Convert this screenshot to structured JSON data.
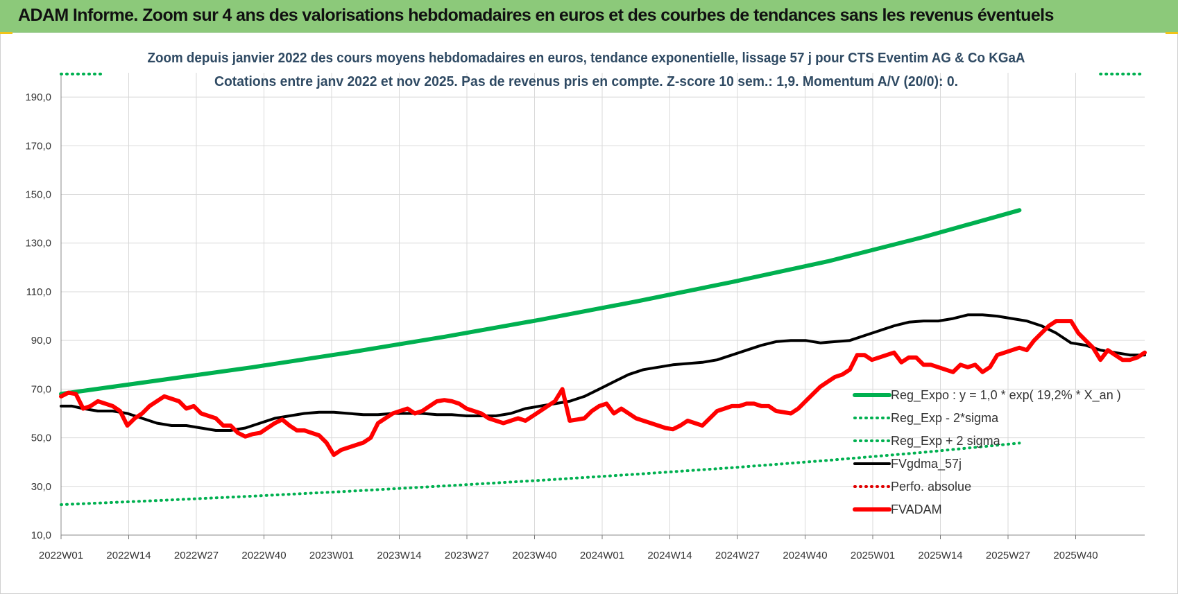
{
  "banner": {
    "title": "ADAM Informe. Zoom sur 4 ans des valorisations hebdomadaires en euros et des courbes de tendances sans les revenus éventuels"
  },
  "colors": {
    "banner_bg": "#8cc97a",
    "reg_expo": "#00b050",
    "fvgdma": "#000000",
    "perfo": "#e00000",
    "fvadam": "#ff0000",
    "grid": "#d9d9d9"
  },
  "chart_data": {
    "type": "line",
    "title": "Zoom depuis janvier 2022 des cours moyens hebdomadaires en euros, tendance exponentielle, lissage 57 j pour CTS Eventim AG & Co KGaA",
    "subtitle": "Cotations entre janv 2022 et nov 2025. Pas de revenus pris en compte. Z-score 10 sem.: 1,9. Momentum A/V (20/0): 0.",
    "xlabel": "",
    "ylabel": "",
    "ylim": [
      10,
      200
    ],
    "y_ticks": [
      "10,0",
      "30,0",
      "50,0",
      "70,0",
      "90,0",
      "110,0",
      "130,0",
      "150,0",
      "170,0",
      "190,0"
    ],
    "x_ticks": [
      "2022W01",
      "2022W14",
      "2022W27",
      "2022W40",
      "2023W01",
      "2023W14",
      "2023W27",
      "2023W40",
      "2024W01",
      "2024W14",
      "2024W27",
      "2024W40",
      "2025W01",
      "2025W14",
      "2025W27",
      "2025W40"
    ],
    "x_week_index_range": [
      0,
      204
    ],
    "grid": true,
    "legend_position": "bottom-right",
    "series": [
      {
        "name": "Reg_Expo : y = 1,0 * exp( 19,2% *  X_an )",
        "style": "solid-thick",
        "color": "#00b050",
        "points": [
          [
            0,
            68
          ],
          [
            26,
            73.5
          ],
          [
            52,
            79
          ],
          [
            78,
            85
          ],
          [
            104,
            91.5
          ],
          [
            130,
            98.5
          ],
          [
            156,
            106
          ],
          [
            182,
            114
          ],
          [
            208,
            122.5
          ],
          [
            234,
            132.5
          ],
          [
            260,
            143.5
          ]
        ]
      },
      {
        "name": "Reg_Exp - 2*sigma",
        "style": "dotted",
        "color": "#00b050",
        "points": [
          [
            0,
            22.5
          ],
          [
            26,
            24.2
          ],
          [
            52,
            26
          ],
          [
            78,
            28
          ],
          [
            104,
            30.2
          ],
          [
            130,
            32.5
          ],
          [
            156,
            35
          ],
          [
            182,
            37.7
          ],
          [
            208,
            40.7
          ],
          [
            234,
            44
          ],
          [
            260,
            47.8
          ]
        ]
      },
      {
        "name": "Reg_Exp + 2 sigma",
        "style": "dotted",
        "color": "#00b050",
        "points": [
          [
            0,
            199.5
          ],
          [
            16,
            199.5
          ]
        ],
        "points_right": [
          [
            183,
            199.5
          ],
          [
            204,
            199.5
          ]
        ]
      },
      {
        "name": "FVgdma_57j",
        "style": "solid-medium",
        "color": "#000000",
        "points": [
          [
            0,
            63
          ],
          [
            3,
            63
          ],
          [
            6,
            62
          ],
          [
            10,
            61
          ],
          [
            14,
            61
          ],
          [
            18,
            60
          ],
          [
            22,
            58
          ],
          [
            26,
            56
          ],
          [
            30,
            55
          ],
          [
            34,
            55
          ],
          [
            38,
            54
          ],
          [
            42,
            53
          ],
          [
            46,
            53
          ],
          [
            50,
            54
          ],
          [
            54,
            56
          ],
          [
            58,
            58
          ],
          [
            62,
            59
          ],
          [
            66,
            60
          ],
          [
            70,
            60.5
          ],
          [
            74,
            60.5
          ],
          [
            78,
            60
          ],
          [
            82,
            59.5
          ],
          [
            86,
            59.5
          ],
          [
            90,
            60
          ],
          [
            94,
            60
          ],
          [
            98,
            60
          ],
          [
            102,
            59.5
          ],
          [
            106,
            59.5
          ],
          [
            110,
            59
          ],
          [
            114,
            59
          ],
          [
            118,
            59
          ],
          [
            122,
            60
          ],
          [
            126,
            62
          ],
          [
            130,
            63
          ],
          [
            134,
            64
          ],
          [
            138,
            65
          ],
          [
            142,
            67
          ],
          [
            146,
            70
          ],
          [
            150,
            73
          ],
          [
            154,
            76
          ],
          [
            158,
            78
          ],
          [
            162,
            79
          ],
          [
            166,
            80
          ],
          [
            170,
            80.5
          ],
          [
            174,
            81
          ],
          [
            178,
            82
          ],
          [
            182,
            84
          ],
          [
            186,
            86
          ],
          [
            190,
            88
          ],
          [
            194,
            89.5
          ],
          [
            198,
            90
          ],
          [
            202,
            90
          ],
          [
            206,
            89
          ],
          [
            210,
            89.5
          ],
          [
            214,
            90
          ],
          [
            218,
            92
          ],
          [
            222,
            94
          ],
          [
            226,
            96
          ],
          [
            230,
            97.5
          ],
          [
            234,
            98
          ],
          [
            238,
            98
          ],
          [
            242,
            99
          ],
          [
            246,
            100.5
          ],
          [
            250,
            100.5
          ],
          [
            254,
            100
          ],
          [
            258,
            99
          ],
          [
            262,
            98
          ],
          [
            266,
            96
          ],
          [
            270,
            93
          ],
          [
            274,
            89
          ],
          [
            278,
            88
          ],
          [
            282,
            86
          ],
          [
            286,
            85
          ],
          [
            290,
            84
          ],
          [
            294,
            84
          ]
        ]
      },
      {
        "name": "Perfo. absolue",
        "style": "dotted",
        "color": "#e00000",
        "points": []
      },
      {
        "name": "FVADAM",
        "style": "solid-thick",
        "color": "#ff0000",
        "points": [
          [
            0,
            67
          ],
          [
            2,
            68.5
          ],
          [
            4,
            68
          ],
          [
            6,
            62
          ],
          [
            8,
            63
          ],
          [
            10,
            65
          ],
          [
            12,
            64
          ],
          [
            14,
            63
          ],
          [
            16,
            61
          ],
          [
            18,
            55
          ],
          [
            20,
            58
          ],
          [
            22,
            60
          ],
          [
            24,
            63
          ],
          [
            26,
            65
          ],
          [
            28,
            67
          ],
          [
            30,
            66
          ],
          [
            32,
            65
          ],
          [
            34,
            62
          ],
          [
            36,
            63
          ],
          [
            38,
            60
          ],
          [
            40,
            59
          ],
          [
            42,
            58
          ],
          [
            44,
            55
          ],
          [
            46,
            55
          ],
          [
            48,
            52
          ],
          [
            50,
            50.5
          ],
          [
            52,
            51.5
          ],
          [
            54,
            52
          ],
          [
            56,
            54
          ],
          [
            58,
            56
          ],
          [
            60,
            57.5
          ],
          [
            62,
            55
          ],
          [
            64,
            53
          ],
          [
            66,
            53
          ],
          [
            68,
            52
          ],
          [
            70,
            51
          ],
          [
            72,
            48
          ],
          [
            74,
            43
          ],
          [
            76,
            45
          ],
          [
            78,
            46
          ],
          [
            80,
            47
          ],
          [
            82,
            48
          ],
          [
            84,
            50
          ],
          [
            86,
            56
          ],
          [
            88,
            58
          ],
          [
            90,
            60
          ],
          [
            92,
            61
          ],
          [
            94,
            62
          ],
          [
            96,
            60
          ],
          [
            98,
            61
          ],
          [
            100,
            63
          ],
          [
            102,
            65
          ],
          [
            104,
            65.5
          ],
          [
            106,
            65
          ],
          [
            108,
            64
          ],
          [
            110,
            62
          ],
          [
            112,
            61
          ],
          [
            114,
            60
          ],
          [
            116,
            58
          ],
          [
            118,
            57
          ],
          [
            120,
            56
          ],
          [
            122,
            57
          ],
          [
            124,
            58
          ],
          [
            126,
            57
          ],
          [
            128,
            59
          ],
          [
            130,
            61
          ],
          [
            132,
            63
          ],
          [
            134,
            65
          ],
          [
            136,
            70
          ],
          [
            138,
            57
          ],
          [
            140,
            57.5
          ],
          [
            142,
            58
          ],
          [
            144,
            61
          ],
          [
            146,
            63
          ],
          [
            148,
            64
          ],
          [
            150,
            60
          ],
          [
            152,
            62
          ],
          [
            154,
            60
          ],
          [
            156,
            58
          ],
          [
            158,
            57
          ],
          [
            160,
            56
          ],
          [
            162,
            55
          ],
          [
            164,
            54
          ],
          [
            166,
            53.5
          ],
          [
            168,
            55
          ],
          [
            170,
            57
          ],
          [
            172,
            56
          ],
          [
            174,
            55
          ],
          [
            176,
            58
          ],
          [
            178,
            61
          ],
          [
            180,
            62
          ],
          [
            182,
            63
          ],
          [
            184,
            63
          ],
          [
            186,
            64
          ],
          [
            188,
            64
          ],
          [
            190,
            63
          ],
          [
            192,
            63
          ],
          [
            194,
            61
          ],
          [
            196,
            60.5
          ],
          [
            198,
            60
          ],
          [
            200,
            62
          ],
          [
            202,
            65
          ],
          [
            204,
            68
          ],
          [
            206,
            71
          ],
          [
            208,
            73
          ],
          [
            210,
            75
          ],
          [
            212,
            76
          ],
          [
            214,
            78
          ],
          [
            216,
            84
          ],
          [
            218,
            84
          ],
          [
            220,
            82
          ],
          [
            222,
            83
          ],
          [
            224,
            84
          ],
          [
            226,
            85
          ],
          [
            228,
            81
          ],
          [
            230,
            83
          ],
          [
            232,
            83
          ],
          [
            234,
            80
          ],
          [
            236,
            80
          ],
          [
            238,
            79
          ],
          [
            240,
            78
          ],
          [
            242,
            77
          ],
          [
            244,
            80
          ],
          [
            246,
            79
          ],
          [
            248,
            80
          ],
          [
            250,
            77
          ],
          [
            252,
            79
          ],
          [
            254,
            84
          ],
          [
            256,
            85
          ],
          [
            258,
            86
          ],
          [
            260,
            87
          ],
          [
            262,
            86
          ],
          [
            264,
            90
          ],
          [
            266,
            93
          ],
          [
            268,
            96
          ],
          [
            270,
            98
          ],
          [
            272,
            98
          ],
          [
            274,
            98
          ],
          [
            276,
            93
          ],
          [
            278,
            90
          ],
          [
            280,
            87
          ],
          [
            282,
            82
          ],
          [
            284,
            86
          ],
          [
            286,
            84
          ],
          [
            288,
            82
          ],
          [
            290,
            82
          ],
          [
            292,
            83
          ],
          [
            294,
            85
          ]
        ]
      }
    ],
    "legend": [
      "Reg_Expo : y = 1,0 * exp( 19,2% *  X_an )",
      "Reg_Exp - 2*sigma",
      "Reg_Exp + 2 sigma",
      "FVgdma_57j",
      "Perfo. absolue",
      "FVADAM"
    ]
  }
}
